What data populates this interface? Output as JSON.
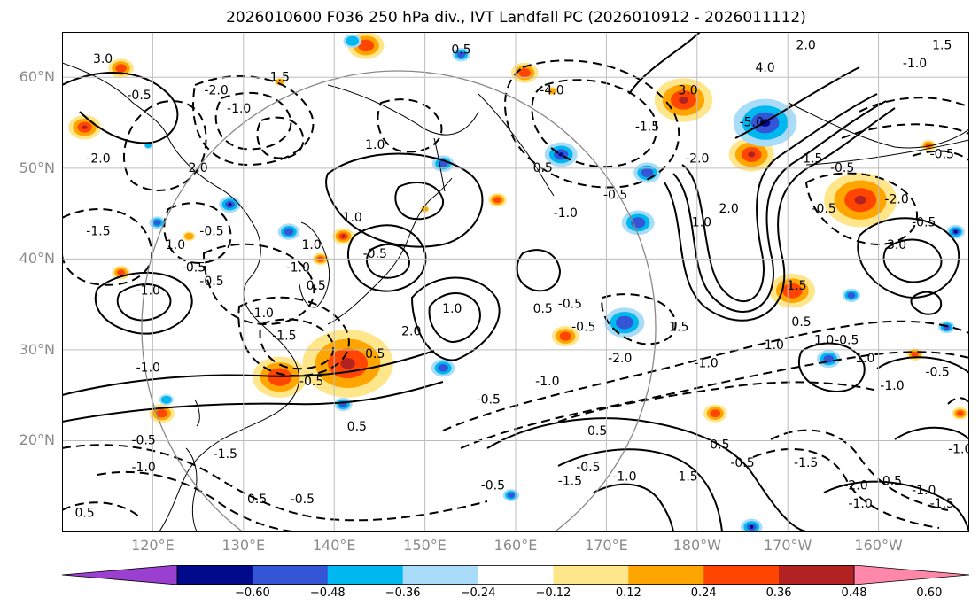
{
  "title": "2026010600 F036 250 hPa div., IVT Landfall PC (2026010912 - 2026011112)",
  "map": {
    "projection": "plate-carree",
    "extent": {
      "lon_min": 110,
      "lon_max": 210,
      "lat_min": 10,
      "lat_max": 65
    },
    "lat_ticks": [
      {
        "value": 20,
        "label": "20°N"
      },
      {
        "value": 30,
        "label": "30°N"
      },
      {
        "value": 40,
        "label": "40°N"
      },
      {
        "value": 50,
        "label": "50°N"
      },
      {
        "value": 60,
        "label": "60°N"
      }
    ],
    "lon_ticks": [
      {
        "value": 120,
        "label": "120°E"
      },
      {
        "value": 130,
        "label": "130°E"
      },
      {
        "value": 140,
        "label": "140°E"
      },
      {
        "value": 150,
        "label": "150°E"
      },
      {
        "value": 160,
        "label": "160°E"
      },
      {
        "value": 170,
        "label": "170°E"
      },
      {
        "value": 180,
        "label": "180°W"
      },
      {
        "value": 190,
        "label": "170°W"
      },
      {
        "value": 200,
        "label": "160°W"
      }
    ],
    "grid": true,
    "colors": {
      "tick_label": "#8a8a8a",
      "grid": "#bdbdbd",
      "coast": "#000000",
      "circle": "#888888"
    }
  },
  "colorbar": {
    "boundaries": [
      -0.72,
      -0.6,
      -0.48,
      -0.36,
      -0.24,
      -0.12,
      0.12,
      0.24,
      0.36,
      0.48,
      0.6,
      0.72
    ],
    "labels": [
      "−0.60",
      "−0.48",
      "−0.36",
      "−0.24",
      "−0.12",
      "0.12",
      "0.24",
      "0.36",
      "0.48",
      "0.60"
    ],
    "colors": [
      "#9a3fd0",
      "#000a8a",
      "#3355d6",
      "#00b8f0",
      "#a8dcf8",
      "#ffffff",
      "#ffe68a",
      "#ffa500",
      "#ff4500",
      "#b22222",
      "#ff88aa"
    ],
    "extend": "both"
  },
  "contour_labels": [
    {
      "text": "3.0",
      "lon": 114.5,
      "lat": 62.0
    },
    {
      "text": "-0.5",
      "lon": 118.5,
      "lat": 58.0
    },
    {
      "text": "-1.0",
      "lon": 129.5,
      "lat": 56.5
    },
    {
      "text": "-2.0",
      "lon": 127.0,
      "lat": 58.5
    },
    {
      "text": "1.5",
      "lon": 134.0,
      "lat": 60.0
    },
    {
      "text": "0.5",
      "lon": 154.0,
      "lat": 63.0
    },
    {
      "text": "-4.0",
      "lon": 164.0,
      "lat": 58.5
    },
    {
      "text": "3.0",
      "lon": 179.0,
      "lat": 58.5
    },
    {
      "text": "-1.5",
      "lon": 174.5,
      "lat": 54.5
    },
    {
      "text": "4.0",
      "lon": 187.5,
      "lat": 61.0
    },
    {
      "text": "2.0",
      "lon": 192.0,
      "lat": 63.5
    },
    {
      "text": "-5.0",
      "lon": 186.0,
      "lat": 55.0
    },
    {
      "text": "-2.0",
      "lon": 180.0,
      "lat": 51.0
    },
    {
      "text": "-1.5",
      "lon": 192.5,
      "lat": 51.0
    },
    {
      "text": "-0.5",
      "lon": 196.0,
      "lat": 50.0
    },
    {
      "text": "-0.5",
      "lon": 207.0,
      "lat": 51.5
    },
    {
      "text": "1.5",
      "lon": 207.0,
      "lat": 63.5
    },
    {
      "text": "-1.0",
      "lon": 204.0,
      "lat": 61.5
    },
    {
      "text": "1.0",
      "lon": 144.5,
      "lat": 52.5
    },
    {
      "text": "2.0",
      "lon": 125.0,
      "lat": 50.0
    },
    {
      "text": "-2.0",
      "lon": 114.0,
      "lat": 51.0
    },
    {
      "text": "0.5",
      "lon": 163.0,
      "lat": 50.0
    },
    {
      "text": "-1.0",
      "lon": 165.5,
      "lat": 45.0
    },
    {
      "text": "-0.5",
      "lon": 171.0,
      "lat": 47.0
    },
    {
      "text": "1.0",
      "lon": 180.5,
      "lat": 44.0
    },
    {
      "text": "2.0",
      "lon": 183.5,
      "lat": 45.5
    },
    {
      "text": "-0.5",
      "lon": 194.0,
      "lat": 45.5
    },
    {
      "text": "-2.0",
      "lon": 202.0,
      "lat": 46.5
    },
    {
      "text": "-0.5",
      "lon": 205.0,
      "lat": 44.0
    },
    {
      "text": "3.0",
      "lon": 202.0,
      "lat": 41.5
    },
    {
      "text": "-1.5",
      "lon": 114.0,
      "lat": 43.0
    },
    {
      "text": "1.0",
      "lon": 122.5,
      "lat": 41.5
    },
    {
      "text": "-0.5",
      "lon": 126.5,
      "lat": 43.0
    },
    {
      "text": "-0.5",
      "lon": 124.5,
      "lat": 39.0
    },
    {
      "text": "-0.5",
      "lon": 126.5,
      "lat": 37.5
    },
    {
      "text": "-1.0",
      "lon": 119.5,
      "lat": 36.5
    },
    {
      "text": "1.0",
      "lon": 137.5,
      "lat": 41.5
    },
    {
      "text": "-1.0",
      "lon": 136.0,
      "lat": 39.0
    },
    {
      "text": "0.5",
      "lon": 138.0,
      "lat": 37.0
    },
    {
      "text": "-0.5",
      "lon": 144.5,
      "lat": 40.5
    },
    {
      "text": "1.0",
      "lon": 142.0,
      "lat": 44.5
    },
    {
      "text": "1.0",
      "lon": 153.0,
      "lat": 34.5
    },
    {
      "text": "2.0",
      "lon": 148.5,
      "lat": 32.0
    },
    {
      "text": "-1.0",
      "lon": 132.0,
      "lat": 34.0
    },
    {
      "text": "-1.5",
      "lon": 134.5,
      "lat": 31.5
    },
    {
      "text": "0.5",
      "lon": 144.5,
      "lat": 29.5
    },
    {
      "text": "-0.5",
      "lon": 137.5,
      "lat": 26.5
    },
    {
      "text": "-0.5",
      "lon": 166.0,
      "lat": 35.0
    },
    {
      "text": "-0.5",
      "lon": 167.5,
      "lat": 32.5
    },
    {
      "text": "0.5",
      "lon": 163.0,
      "lat": 34.5
    },
    {
      "text": "1.5",
      "lon": 178.0,
      "lat": 32.5
    },
    {
      "text": "-2.0",
      "lon": 171.5,
      "lat": 29.0
    },
    {
      "text": "-1.0",
      "lon": 163.5,
      "lat": 26.5
    },
    {
      "text": "-0.5",
      "lon": 157.0,
      "lat": 24.5
    },
    {
      "text": "-1.0",
      "lon": 181.0,
      "lat": 28.5
    },
    {
      "text": "1.5",
      "lon": 191.0,
      "lat": 37.0
    },
    {
      "text": "1.0",
      "lon": 188.5,
      "lat": 30.5
    },
    {
      "text": "0.5",
      "lon": 191.5,
      "lat": 33.0
    },
    {
      "text": "1.0",
      "lon": 194.0,
      "lat": 31.0
    },
    {
      "text": "-0.5",
      "lon": 196.5,
      "lat": 31.0
    },
    {
      "text": "1.0",
      "lon": 198.5,
      "lat": 29.0
    },
    {
      "text": "-1.0",
      "lon": 201.5,
      "lat": 26.0
    },
    {
      "text": "-0.5",
      "lon": 206.5,
      "lat": 27.5
    },
    {
      "text": "0.5",
      "lon": 142.5,
      "lat": 21.5
    },
    {
      "text": "-1.0",
      "lon": 119.5,
      "lat": 28.0
    },
    {
      "text": "-0.5",
      "lon": 119.0,
      "lat": 20.0
    },
    {
      "text": "-1.5",
      "lon": 128.0,
      "lat": 18.5
    },
    {
      "text": "-1.0",
      "lon": 119.0,
      "lat": 17.0
    },
    {
      "text": "0.5",
      "lon": 131.5,
      "lat": 13.5
    },
    {
      "text": "-0.5",
      "lon": 136.5,
      "lat": 13.5
    },
    {
      "text": "-0.5",
      "lon": 157.5,
      "lat": 15.0
    },
    {
      "text": "0.5",
      "lon": 169.0,
      "lat": 21.0
    },
    {
      "text": "-1.5",
      "lon": 166.0,
      "lat": 15.5
    },
    {
      "text": "-0.5",
      "lon": 168.0,
      "lat": 17.0
    },
    {
      "text": "-1.0",
      "lon": 172.0,
      "lat": 16.0
    },
    {
      "text": "1.5",
      "lon": 179.0,
      "lat": 16.0
    },
    {
      "text": "0.5",
      "lon": 182.5,
      "lat": 19.5
    },
    {
      "text": "-0.5",
      "lon": 185.0,
      "lat": 17.5
    },
    {
      "text": "-1.5",
      "lon": 192.0,
      "lat": 17.5
    },
    {
      "text": "-2.0",
      "lon": 197.5,
      "lat": 15.0
    },
    {
      "text": "0.5",
      "lon": 201.5,
      "lat": 15.5
    },
    {
      "text": "-1.0",
      "lon": 198.0,
      "lat": 13.0
    },
    {
      "text": "-1.0",
      "lon": 205.0,
      "lat": 14.5
    },
    {
      "text": "-1.5",
      "lon": 207.0,
      "lat": 13.0
    },
    {
      "text": "-1.0",
      "lon": 209.0,
      "lat": 19.0
    },
    {
      "text": "0.5",
      "lon": 112.5,
      "lat": 12.0
    }
  ],
  "positive_patches": [
    {
      "lon": 178.5,
      "lat": 57.5,
      "r": 3.2,
      "level": 3
    },
    {
      "lon": 186.0,
      "lat": 51.5,
      "r": 2.5,
      "level": 3
    },
    {
      "lon": 198.0,
      "lat": 46.5,
      "r": 4.0,
      "level": 3
    },
    {
      "lon": 190.5,
      "lat": 36.5,
      "r": 2.5,
      "level": 2
    },
    {
      "lon": 141.5,
      "lat": 28.5,
      "r": 5.0,
      "level": 3
    },
    {
      "lon": 134.0,
      "lat": 27.0,
      "r": 3.0,
      "level": 2
    },
    {
      "lon": 112.5,
      "lat": 54.5,
      "r": 1.8,
      "level": 3
    },
    {
      "lon": 116.5,
      "lat": 61.0,
      "r": 1.4,
      "level": 2
    },
    {
      "lon": 143.5,
      "lat": 63.5,
      "r": 2.0,
      "level": 2
    },
    {
      "lon": 161.0,
      "lat": 60.5,
      "r": 1.5,
      "level": 2
    },
    {
      "lon": 158.0,
      "lat": 46.5,
      "r": 1.0,
      "level": 2
    },
    {
      "lon": 141.0,
      "lat": 42.5,
      "r": 1.2,
      "level": 3
    },
    {
      "lon": 138.5,
      "lat": 40.0,
      "r": 0.9,
      "level": 2
    },
    {
      "lon": 124.0,
      "lat": 42.5,
      "r": 0.7,
      "level": 1
    },
    {
      "lon": 116.5,
      "lat": 38.5,
      "r": 1.0,
      "level": 2
    },
    {
      "lon": 165.5,
      "lat": 31.5,
      "r": 1.5,
      "level": 2
    },
    {
      "lon": 121.0,
      "lat": 23.0,
      "r": 1.4,
      "level": 2
    },
    {
      "lon": 182.0,
      "lat": 23.0,
      "r": 1.3,
      "level": 2
    },
    {
      "lon": 204.0,
      "lat": 29.5,
      "r": 0.9,
      "level": 2
    },
    {
      "lon": 209.0,
      "lat": 23.0,
      "r": 0.9,
      "level": 2
    },
    {
      "lon": 205.5,
      "lat": 52.5,
      "r": 0.8,
      "level": 2
    },
    {
      "lon": 164.0,
      "lat": 58.5,
      "r": 0.6,
      "level": 1
    },
    {
      "lon": 134.0,
      "lat": 59.5,
      "r": 0.6,
      "level": 1
    },
    {
      "lon": 150.0,
      "lat": 45.5,
      "r": 0.5,
      "level": 1
    }
  ],
  "negative_patches": [
    {
      "lon": 187.5,
      "lat": 55.0,
      "r": 3.5,
      "level": 4
    },
    {
      "lon": 174.5,
      "lat": 49.5,
      "r": 1.5,
      "level": 2
    },
    {
      "lon": 165.0,
      "lat": 51.5,
      "r": 1.8,
      "level": 3
    },
    {
      "lon": 152.0,
      "lat": 50.5,
      "r": 1.2,
      "level": 2
    },
    {
      "lon": 142.0,
      "lat": 64.0,
      "r": 1.0,
      "level": 1
    },
    {
      "lon": 128.5,
      "lat": 46.0,
      "r": 1.2,
      "level": 3
    },
    {
      "lon": 135.0,
      "lat": 43.0,
      "r": 1.2,
      "level": 2
    },
    {
      "lon": 120.5,
      "lat": 44.0,
      "r": 0.9,
      "level": 2
    },
    {
      "lon": 173.5,
      "lat": 44.0,
      "r": 1.8,
      "level": 2
    },
    {
      "lon": 172.0,
      "lat": 33.0,
      "r": 2.2,
      "level": 2
    },
    {
      "lon": 152.0,
      "lat": 28.0,
      "r": 1.3,
      "level": 2
    },
    {
      "lon": 141.0,
      "lat": 24.0,
      "r": 1.0,
      "level": 2
    },
    {
      "lon": 121.5,
      "lat": 24.5,
      "r": 0.8,
      "level": 1
    },
    {
      "lon": 194.5,
      "lat": 29.0,
      "r": 1.3,
      "level": 2
    },
    {
      "lon": 207.5,
      "lat": 32.5,
      "r": 0.9,
      "level": 2
    },
    {
      "lon": 208.5,
      "lat": 43.0,
      "r": 1.0,
      "level": 3
    },
    {
      "lon": 197.0,
      "lat": 36.0,
      "r": 1.0,
      "level": 2
    },
    {
      "lon": 159.5,
      "lat": 14.0,
      "r": 0.9,
      "level": 2
    },
    {
      "lon": 186.0,
      "lat": 10.5,
      "r": 1.2,
      "level": 3
    },
    {
      "lon": 154.0,
      "lat": 62.5,
      "r": 1.0,
      "level": 2
    },
    {
      "lon": 119.5,
      "lat": 52.5,
      "r": 0.5,
      "level": 1
    }
  ]
}
